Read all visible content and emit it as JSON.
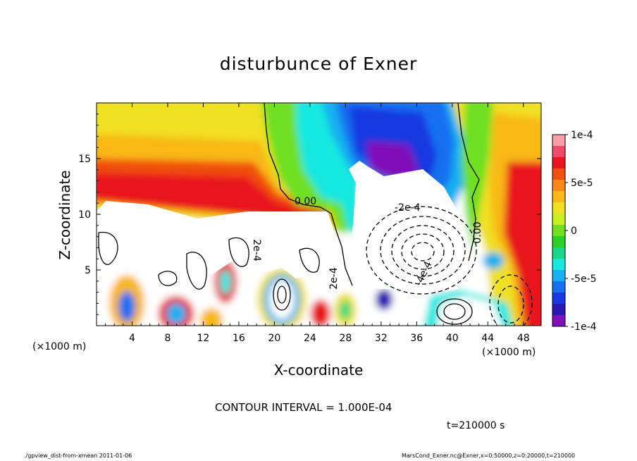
{
  "chart_data": {
    "type": "heatmap",
    "title": "disturbunce of Exner",
    "xlabel": "X-coordinate",
    "ylabel": "Z-coordinate",
    "x_unit": "(×1000 m)",
    "xlim": [
      0,
      50
    ],
    "ylim": [
      0,
      20
    ],
    "x_ticks": [
      4,
      8,
      12,
      16,
      20,
      24,
      28,
      32,
      36,
      40,
      44,
      48
    ],
    "y_ticks": [
      5,
      10,
      15
    ],
    "colorbar": {
      "min": -0.0001,
      "max": 0.0001,
      "tick_labels": [
        "1e-4",
        "5e-5",
        "0",
        "-5e-5",
        "-1e-4"
      ],
      "tick_values": [
        0.0001,
        5e-05,
        0,
        -5e-05,
        -0.0001
      ],
      "colors": [
        "#f8a0a8",
        "#f04a6a",
        "#e8141e",
        "#f05010",
        "#f88818",
        "#f8b818",
        "#f0e020",
        "#c8f020",
        "#70e020",
        "#28d028",
        "#18d888",
        "#18e8e0",
        "#18b0f0",
        "#1870f0",
        "#1838e0",
        "#2818b0",
        "#8010b8"
      ]
    },
    "contour_labels": [
      "0.00",
      "-2e-4",
      "2e-4",
      "2e-4",
      "-4e-4",
      "0.00"
    ],
    "contour_interval_text": "CONTOUR INTERVAL = 1.000E-04"
  },
  "time_label": "t=210000 s",
  "footer": {
    "left": "./gpview_dist-from-xmean  2011-01-06",
    "right": "MarsCond_Exner.nc@Exner,x=0:50000,z=0:20000,t=210000"
  }
}
